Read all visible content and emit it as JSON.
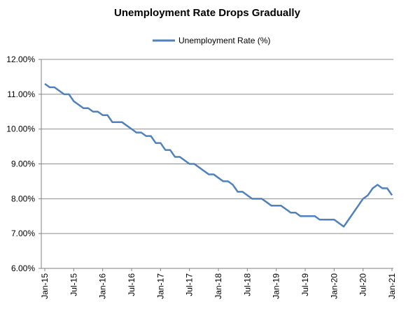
{
  "chart_data": {
    "type": "line",
    "title": "Unemployment Rate Drops Gradually",
    "xlabel": "",
    "ylabel": "",
    "ylim": [
      6,
      12
    ],
    "y_ticks": [
      "12.00%",
      "11.00%",
      "10.00%",
      "9.00%",
      "8.00%",
      "7.00%",
      "6.00%"
    ],
    "y_tick_values": [
      12,
      11,
      10,
      9,
      8,
      7,
      6
    ],
    "x_tick_labels": [
      "Jan-15",
      "Jul-15",
      "Jan-16",
      "Jul-16",
      "Jan-17",
      "Jul-17",
      "Jan-18",
      "Jul-18",
      "Jan-19",
      "Jul-19",
      "Jan-20",
      "Jul-20",
      "Jan-21"
    ],
    "x_tick_indices": [
      0,
      6,
      12,
      18,
      24,
      30,
      36,
      42,
      48,
      54,
      60,
      66,
      72
    ],
    "legend_position": "top-center",
    "grid": true,
    "colors": {
      "series": "#4f81bd",
      "grid": "#8c8c8c",
      "axis": "#808080"
    },
    "series": [
      {
        "name": "Unemployment Rate (%)",
        "values": [
          11.3,
          11.2,
          11.2,
          11.1,
          11.0,
          11.0,
          10.8,
          10.7,
          10.6,
          10.6,
          10.5,
          10.5,
          10.4,
          10.4,
          10.2,
          10.2,
          10.2,
          10.1,
          10.0,
          9.9,
          9.9,
          9.8,
          9.8,
          9.6,
          9.6,
          9.4,
          9.4,
          9.2,
          9.2,
          9.1,
          9.0,
          9.0,
          8.9,
          8.8,
          8.7,
          8.7,
          8.6,
          8.5,
          8.5,
          8.4,
          8.2,
          8.2,
          8.1,
          8.0,
          8.0,
          8.0,
          7.9,
          7.8,
          7.8,
          7.8,
          7.7,
          7.6,
          7.6,
          7.5,
          7.5,
          7.5,
          7.5,
          7.4,
          7.4,
          7.4,
          7.4,
          7.3,
          7.2,
          7.4,
          7.6,
          7.8,
          8.0,
          8.1,
          8.3,
          8.4,
          8.3,
          8.3,
          8.1
        ]
      }
    ]
  }
}
